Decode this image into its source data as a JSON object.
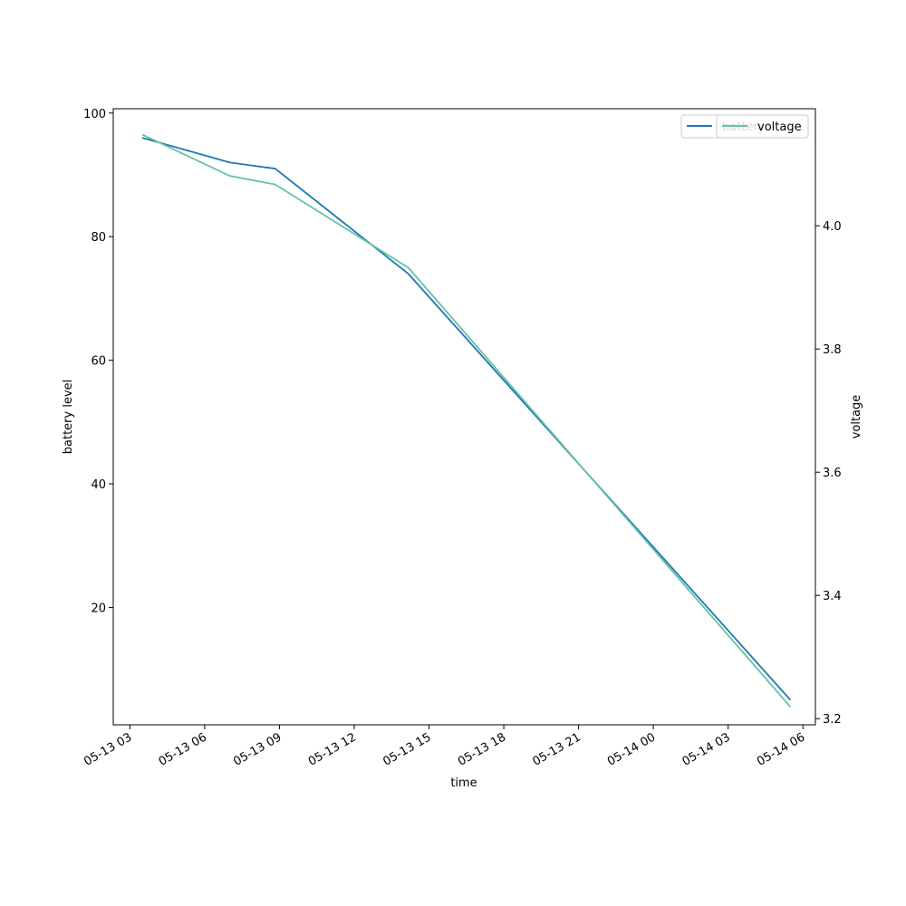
{
  "chart_data": {
    "type": "line",
    "xlabel": "time",
    "ylabel": "battery level",
    "y2label": "voltage",
    "xlim": [
      "2025-05-13 02:20",
      "2025-05-14 06:30"
    ],
    "ylim": [
      1.0,
      100.7
    ],
    "y2lim": [
      3.19,
      4.19
    ],
    "x_ticks": [
      {
        "label": "05-13 03",
        "value": "2025-05-13 03:00"
      },
      {
        "label": "05-13 06",
        "value": "2025-05-13 06:00"
      },
      {
        "label": "05-13 09",
        "value": "2025-05-13 09:00"
      },
      {
        "label": "05-13 12",
        "value": "2025-05-13 12:00"
      },
      {
        "label": "05-13 15",
        "value": "2025-05-13 15:00"
      },
      {
        "label": "05-13 18",
        "value": "2025-05-13 18:00"
      },
      {
        "label": "05-13 21",
        "value": "2025-05-13 21:00"
      },
      {
        "label": "05-14 00",
        "value": "2025-05-14 00:00"
      },
      {
        "label": "05-14 03",
        "value": "2025-05-14 03:00"
      },
      {
        "label": "05-14 06",
        "value": "2025-05-14 06:00"
      }
    ],
    "y_ticks": [
      {
        "label": "20",
        "value": 20
      },
      {
        "label": "40",
        "value": 40
      },
      {
        "label": "60",
        "value": 60
      },
      {
        "label": "80",
        "value": 80
      },
      {
        "label": "100",
        "value": 100
      }
    ],
    "y2_ticks": [
      {
        "label": "3.2",
        "value": 3.2
      },
      {
        "label": "3.4",
        "value": 3.4
      },
      {
        "label": "3.6",
        "value": 3.6
      },
      {
        "label": "3.8",
        "value": 3.8
      },
      {
        "label": "4.0",
        "value": 4.0
      }
    ],
    "series": [
      {
        "name": "battery",
        "axis": "left",
        "color": "#1f77b4",
        "points": [
          {
            "x": "2025-05-13 03:30",
            "y": 96
          },
          {
            "x": "2025-05-13 07:00",
            "y": 92
          },
          {
            "x": "2025-05-13 08:50",
            "y": 91
          },
          {
            "x": "2025-05-13 14:10",
            "y": 74
          },
          {
            "x": "2025-05-14 05:30",
            "y": 5
          }
        ]
      },
      {
        "name": "voltage",
        "axis": "right",
        "color": "#66c2a5",
        "points": [
          {
            "x": "2025-05-13 03:30",
            "y": 4.148
          },
          {
            "x": "2025-05-13 07:00",
            "y": 4.081
          },
          {
            "x": "2025-05-13 08:50",
            "y": 4.067
          },
          {
            "x": "2025-05-13 14:10",
            "y": 3.932
          },
          {
            "x": "2025-05-14 05:30",
            "y": 3.219
          }
        ]
      }
    ],
    "legend": "top-right",
    "grid": false
  }
}
